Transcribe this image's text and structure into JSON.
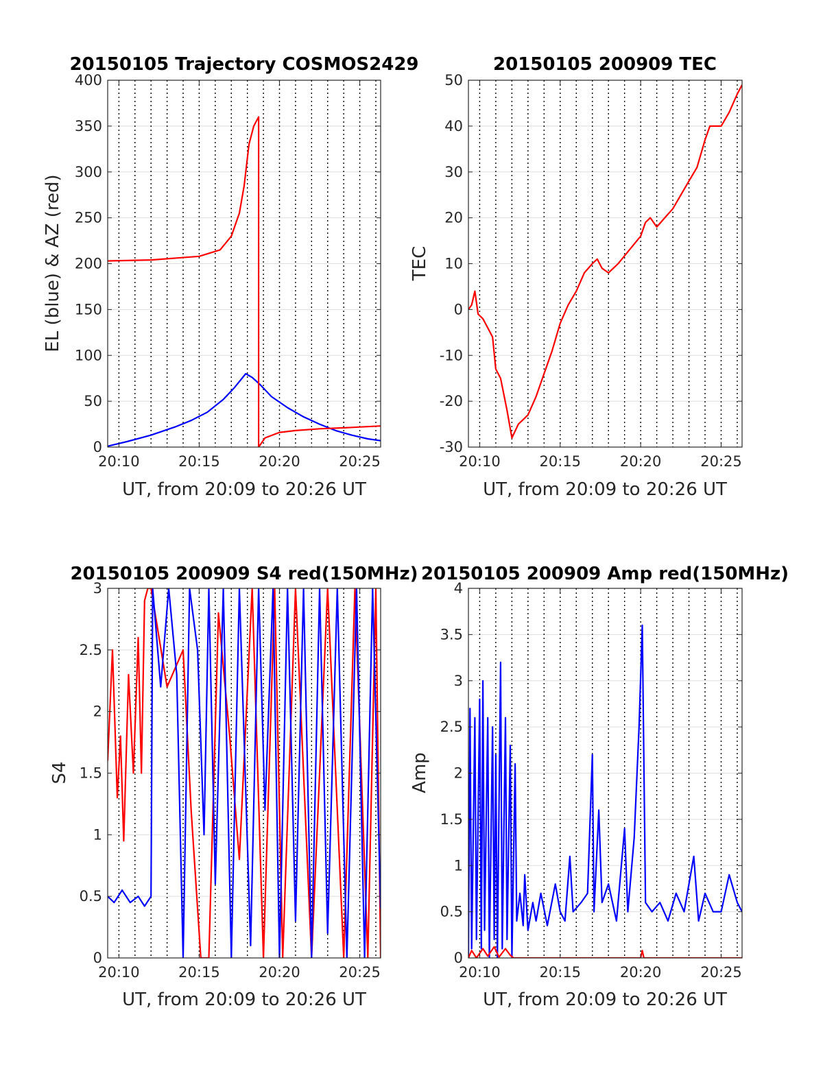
{
  "colors": {
    "red": "#ff0000",
    "blue": "#0000ff",
    "axis": "#262626",
    "grid": "#dddddd"
  },
  "chart_data": [
    {
      "id": "trajectory",
      "type": "line",
      "title": "20150105 Trajectory COSMOS2429",
      "xlabel": "UT, from 20:09 to 20:26 UT",
      "ylabel": "EL (blue) & AZ (red)",
      "xlim": [
        9.3,
        26.3
      ],
      "ylim": [
        0,
        400
      ],
      "xticks": [
        10,
        15,
        20,
        25
      ],
      "xtick_labels": [
        "20:10",
        "20:15",
        "20:20",
        "20:25"
      ],
      "yticks": [
        0,
        50,
        100,
        150,
        200,
        250,
        300,
        350,
        400
      ],
      "ytick_labels": [
        "0",
        "50",
        "100",
        "150",
        "200",
        "250",
        "300",
        "350",
        "400"
      ],
      "grid": "on",
      "series": [
        {
          "color": "blue",
          "points": [
            [
              9.3,
              1
            ],
            [
              10.5,
              6
            ],
            [
              12,
              13
            ],
            [
              13.5,
              22
            ],
            [
              14.5,
              29
            ],
            [
              15.5,
              38
            ],
            [
              16.5,
              52
            ],
            [
              17.2,
              65
            ],
            [
              17.9,
              80
            ],
            [
              18.3,
              76
            ],
            [
              18.8,
              68
            ],
            [
              19.5,
              55
            ],
            [
              20.5,
              43
            ],
            [
              21.5,
              33
            ],
            [
              22.5,
              25
            ],
            [
              23.5,
              18
            ],
            [
              24.5,
              13
            ],
            [
              25.5,
              9
            ],
            [
              26.3,
              7
            ]
          ]
        },
        {
          "color": "red",
          "points": [
            [
              9.3,
              203
            ],
            [
              12,
              204
            ],
            [
              15,
              208
            ],
            [
              16.3,
              215
            ],
            [
              17,
              230
            ],
            [
              17.5,
              255
            ],
            [
              17.8,
              285
            ],
            [
              18.1,
              330
            ],
            [
              18.4,
              350
            ],
            [
              18.7,
              360
            ],
            [
              18.7,
              0
            ],
            [
              19.1,
              10
            ],
            [
              20,
              16
            ],
            [
              21,
              18
            ],
            [
              22.5,
              20
            ],
            [
              24,
              21
            ],
            [
              26.3,
              23
            ]
          ]
        }
      ]
    },
    {
      "id": "tec",
      "type": "line",
      "title": "20150105 200909 TEC",
      "xlabel": "UT, from 20:09 to 20:26 UT",
      "ylabel": "TEC",
      "xlim": [
        9.3,
        26.3
      ],
      "ylim": [
        -30,
        50
      ],
      "xticks": [
        10,
        15,
        20,
        25
      ],
      "xtick_labels": [
        "20:10",
        "20:15",
        "20:20",
        "20:25"
      ],
      "yticks": [
        -30,
        -20,
        -10,
        0,
        10,
        20,
        30,
        40,
        50
      ],
      "ytick_labels": [
        "-30",
        "-20",
        "-10",
        "0",
        "10",
        "20",
        "30",
        "40",
        "50"
      ],
      "grid": "on",
      "series": [
        {
          "color": "red",
          "points": [
            [
              9.3,
              0
            ],
            [
              9.5,
              1
            ],
            [
              9.7,
              4
            ],
            [
              9.9,
              -1
            ],
            [
              10.2,
              -2
            ],
            [
              10.5,
              -4
            ],
            [
              10.8,
              -6
            ],
            [
              11,
              -13
            ],
            [
              11.3,
              -15
            ],
            [
              11.7,
              -22
            ],
            [
              12,
              -28
            ],
            [
              12.4,
              -25
            ],
            [
              13,
              -23
            ],
            [
              13.5,
              -19
            ],
            [
              14,
              -14
            ],
            [
              14.5,
              -9
            ],
            [
              15,
              -3
            ],
            [
              15.5,
              1
            ],
            [
              16,
              4
            ],
            [
              16.5,
              8
            ],
            [
              17,
              10
            ],
            [
              17.3,
              11
            ],
            [
              17.6,
              9
            ],
            [
              18,
              8
            ],
            [
              18.6,
              10
            ],
            [
              19.3,
              13
            ],
            [
              20,
              16
            ],
            [
              20.3,
              19
            ],
            [
              20.6,
              20
            ],
            [
              21,
              18
            ],
            [
              21.5,
              20
            ],
            [
              22,
              22
            ],
            [
              22.5,
              25
            ],
            [
              23,
              28
            ],
            [
              23.5,
              31
            ],
            [
              24,
              37
            ],
            [
              24.3,
              40
            ],
            [
              25,
              40
            ],
            [
              25.5,
              43
            ],
            [
              26,
              47
            ],
            [
              26.3,
              49
            ]
          ]
        }
      ]
    },
    {
      "id": "s4",
      "type": "line",
      "title": "20150105 200909 S4 red(150MHz)",
      "xlabel": "UT, from 20:09 to 20:26 UT",
      "ylabel": "S4",
      "xlim": [
        9.3,
        26.3
      ],
      "ylim": [
        0,
        3
      ],
      "xticks": [
        10,
        15,
        20,
        25
      ],
      "xtick_labels": [
        "20:10",
        "20:15",
        "20:20",
        "20:25"
      ],
      "yticks": [
        0,
        0.5,
        1,
        1.5,
        2,
        2.5,
        3
      ],
      "ytick_labels": [
        "0",
        "0.5",
        "1",
        "1.5",
        "2",
        "2.5",
        "3"
      ],
      "grid": "on",
      "series": [
        {
          "color": "red",
          "points": [
            [
              9.3,
              1.6
            ],
            [
              9.6,
              2.5
            ],
            [
              9.9,
              1.3
            ],
            [
              10.1,
              1.8
            ],
            [
              10.3,
              0.95
            ],
            [
              10.6,
              2.3
            ],
            [
              10.9,
              1.5
            ],
            [
              11.2,
              2.6
            ],
            [
              11.4,
              1.5
            ],
            [
              11.6,
              2.9
            ],
            [
              11.8,
              3
            ],
            [
              12,
              3
            ],
            [
              13,
              2.2
            ],
            [
              14,
              2.5
            ],
            [
              14.5,
              1.2
            ],
            [
              15.1,
              0
            ],
            [
              15.6,
              0
            ],
            [
              16.2,
              2.8
            ],
            [
              16.9,
              1.8
            ],
            [
              17.5,
              0.8
            ],
            [
              18.3,
              3
            ],
            [
              19,
              0
            ],
            [
              19.7,
              3
            ],
            [
              20.2,
              0
            ],
            [
              21,
              3
            ],
            [
              22,
              0
            ],
            [
              23,
              3
            ],
            [
              24,
              0
            ],
            [
              24.7,
              3
            ],
            [
              25.5,
              0
            ],
            [
              26,
              3
            ],
            [
              26.3,
              0
            ]
          ]
        },
        {
          "color": "blue",
          "points": [
            [
              9.3,
              0.5
            ],
            [
              9.7,
              0.45
            ],
            [
              10.2,
              0.55
            ],
            [
              10.7,
              0.45
            ],
            [
              11.2,
              0.5
            ],
            [
              11.6,
              0.42
            ],
            [
              12,
              0.5
            ],
            [
              12.1,
              3
            ],
            [
              12.6,
              2.2
            ],
            [
              13.1,
              3
            ],
            [
              13.6,
              2.3
            ],
            [
              14,
              0
            ],
            [
              14.4,
              3
            ],
            [
              14.9,
              2.5
            ],
            [
              15.3,
              1.0
            ],
            [
              15.6,
              3
            ],
            [
              16,
              0.6
            ],
            [
              16.5,
              3
            ],
            [
              17,
              0
            ],
            [
              17.5,
              3
            ],
            [
              18.2,
              0.1
            ],
            [
              18.7,
              3
            ],
            [
              19.1,
              1.2
            ],
            [
              19.6,
              3
            ],
            [
              20,
              0
            ],
            [
              20.5,
              3
            ],
            [
              21,
              0.3
            ],
            [
              21.5,
              3
            ],
            [
              22,
              0
            ],
            [
              22.5,
              3
            ],
            [
              23,
              0.2
            ],
            [
              23.6,
              3
            ],
            [
              24.2,
              0
            ],
            [
              24.8,
              3
            ],
            [
              25.3,
              0
            ],
            [
              25.8,
              3
            ],
            [
              26.3,
              0.4
            ]
          ]
        }
      ]
    },
    {
      "id": "amp",
      "type": "line",
      "title": "20150105 200909 Amp red(150MHz)",
      "xlabel": "UT, from 20:09 to 20:26 UT",
      "ylabel": "Amp",
      "xlim": [
        9.3,
        26.3
      ],
      "ylim": [
        0,
        4
      ],
      "xticks": [
        10,
        15,
        20,
        25
      ],
      "xtick_labels": [
        "20:10",
        "20:15",
        "20:20",
        "20:25"
      ],
      "yticks": [
        0,
        0.5,
        1,
        1.5,
        2,
        2.5,
        3,
        3.5,
        4
      ],
      "ytick_labels": [
        "0",
        "0.5",
        "1",
        "1.5",
        "2",
        "2.5",
        "3",
        "3.5",
        "4"
      ],
      "grid": "on",
      "series": [
        {
          "color": "blue",
          "points": [
            [
              9.3,
              0
            ],
            [
              9.4,
              2.7
            ],
            [
              9.5,
              0.1
            ],
            [
              9.7,
              2.6
            ],
            [
              9.8,
              0.2
            ],
            [
              10,
              2.8
            ],
            [
              10.1,
              0.1
            ],
            [
              10.2,
              3.0
            ],
            [
              10.3,
              0.3
            ],
            [
              10.5,
              2.6
            ],
            [
              10.6,
              0
            ],
            [
              10.8,
              2.5
            ],
            [
              10.9,
              0.2
            ],
            [
              11,
              2.2
            ],
            [
              11.1,
              0
            ],
            [
              11.3,
              3.2
            ],
            [
              11.4,
              0.1
            ],
            [
              11.6,
              2.6
            ],
            [
              11.7,
              0.2
            ],
            [
              11.9,
              2.3
            ],
            [
              12,
              0
            ],
            [
              12.2,
              2.1
            ],
            [
              12.3,
              0.4
            ],
            [
              12.5,
              0.7
            ],
            [
              12.7,
              0.35
            ],
            [
              12.8,
              0.9
            ],
            [
              13,
              0.3
            ],
            [
              13.3,
              0.6
            ],
            [
              13.5,
              0.4
            ],
            [
              13.8,
              0.7
            ],
            [
              14.2,
              0.35
            ],
            [
              14.7,
              0.8
            ],
            [
              15,
              0.5
            ],
            [
              15.3,
              0.4
            ],
            [
              15.6,
              1.1
            ],
            [
              15.8,
              0.5
            ],
            [
              16.3,
              0.6
            ],
            [
              16.7,
              0.7
            ],
            [
              17.0,
              2.2
            ],
            [
              17.1,
              0.5
            ],
            [
              17.4,
              1.6
            ],
            [
              17.6,
              0.6
            ],
            [
              18,
              0.8
            ],
            [
              18.5,
              0.4
            ],
            [
              19,
              1.4
            ],
            [
              19.2,
              0.5
            ],
            [
              19.6,
              1.3
            ],
            [
              19.9,
              2.5
            ],
            [
              20.1,
              3.6
            ],
            [
              20.3,
              0.6
            ],
            [
              20.7,
              0.5
            ],
            [
              21.2,
              0.6
            ],
            [
              21.7,
              0.4
            ],
            [
              22.2,
              0.7
            ],
            [
              22.7,
              0.5
            ],
            [
              23.3,
              1.1
            ],
            [
              23.6,
              0.4
            ],
            [
              24,
              0.7
            ],
            [
              24.5,
              0.5
            ],
            [
              25,
              0.5
            ],
            [
              25.5,
              0.9
            ],
            [
              26,
              0.6
            ],
            [
              26.3,
              0.5
            ]
          ]
        },
        {
          "color": "red",
          "points": [
            [
              9.3,
              0
            ],
            [
              9.5,
              0.08
            ],
            [
              9.8,
              0
            ],
            [
              10.2,
              0.1
            ],
            [
              10.5,
              0.02
            ],
            [
              10.9,
              0.12
            ],
            [
              11.2,
              0.01
            ],
            [
              11.6,
              0.1
            ],
            [
              11.9,
              0.03
            ],
            [
              12.1,
              0
            ],
            [
              20,
              0
            ],
            [
              20.1,
              0.08
            ],
            [
              20.2,
              0
            ],
            [
              26.3,
              0
            ]
          ]
        }
      ]
    }
  ]
}
